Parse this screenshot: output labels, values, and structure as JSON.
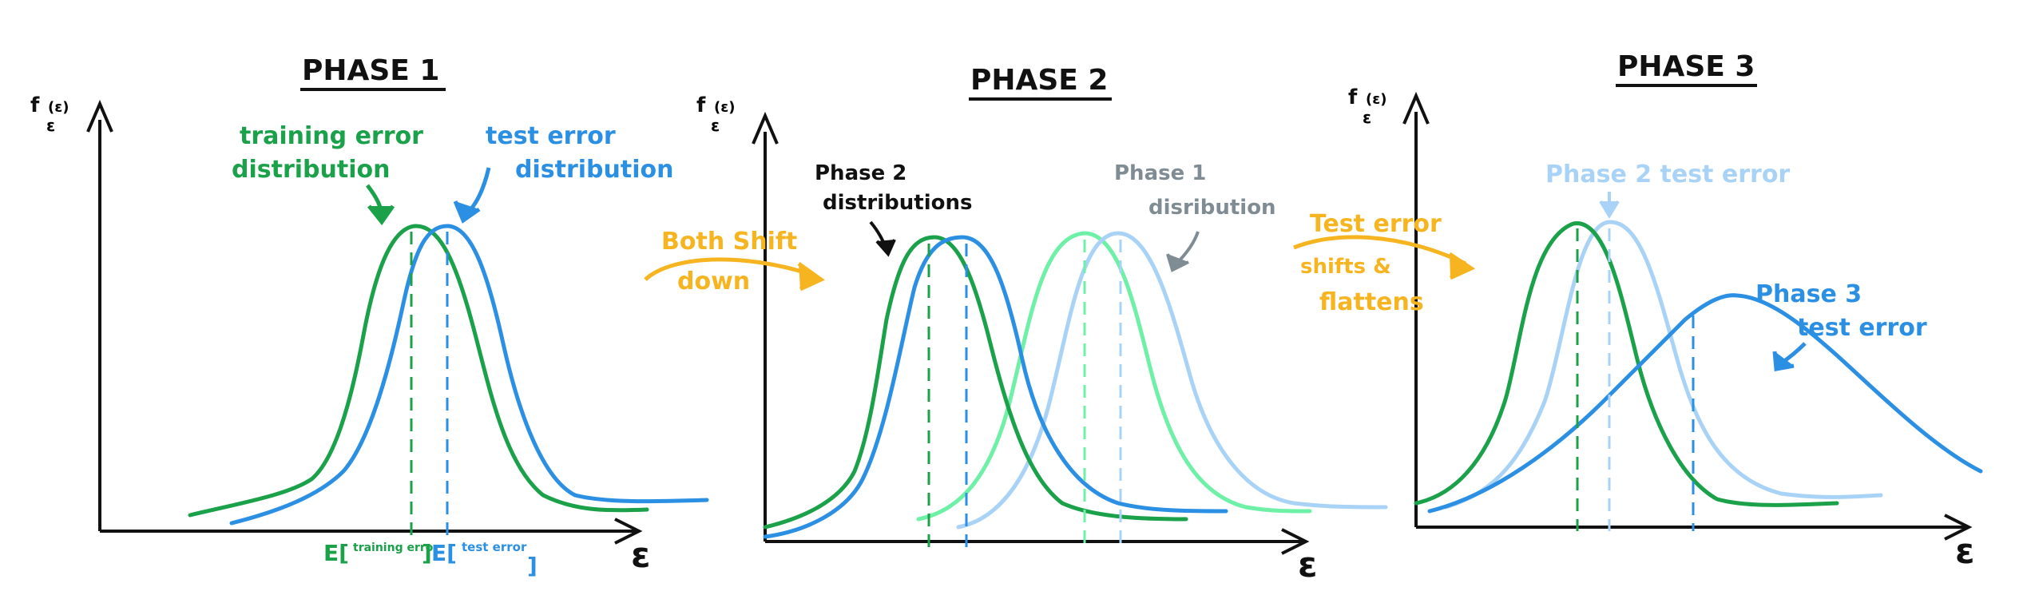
{
  "colors": {
    "ink": "#111111",
    "green": "#1aa14a",
    "blue": "#2b8fe3",
    "light_green": "#6ff0a7",
    "light_blue": "#a9d3f6",
    "orange": "#f6b520",
    "gray": "#7f8c93"
  },
  "panels": [
    {
      "title": "PHASE 1",
      "y_label": "f",
      "y_label_sub": "ε",
      "y_label_sup": "(ε)",
      "x_label": "ε",
      "annotations": {
        "training_line1": "training error",
        "training_line2": "distribution",
        "test_line1": "test error",
        "test_line2": "distribution"
      },
      "ticks": {
        "train_E": "E[",
        "train_small": "training error",
        "train_end": "]",
        "test_E": "E[",
        "test_small": "test error",
        "test_end": "]"
      }
    },
    {
      "title": "PHASE 2",
      "y_label": "f",
      "y_label_sub": "ε",
      "y_label_sup": "(ε)",
      "x_label": "ε",
      "annotations": {
        "both_line1": "Both Shift",
        "both_line2": "down",
        "p2_line1": "Phase 2",
        "p2_line2": "distributions",
        "p1_line1": "Phase 1",
        "p1_line2": "disribution"
      }
    },
    {
      "title": "PHASE 3",
      "y_label": "f",
      "y_label_sub": "ε",
      "y_label_sup": "(ε)",
      "x_label": "ε",
      "annotations": {
        "shift_line1": "Test error",
        "shift_line2": "shifts &",
        "shift_line3": "flattens",
        "p2test": "Phase 2 test error",
        "p3_line1": "Phase 3",
        "p3_line2": "test error"
      }
    }
  ]
}
